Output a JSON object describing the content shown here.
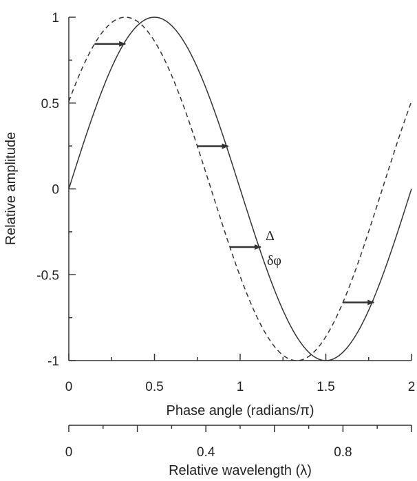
{
  "chart_data": {
    "type": "line",
    "xlabel": "Phase angle (radians/π)",
    "ylabel": "Relative amplitude",
    "xlim": [
      0,
      2
    ],
    "ylim": [
      -1,
      1
    ],
    "x_ticks": [
      "0",
      "0.5",
      "1",
      "1.5",
      "2"
    ],
    "y_ticks": [
      "1",
      "0.5",
      "0",
      "-0.5",
      "-1"
    ],
    "grid": false,
    "secondary_x_axis": {
      "label": "Relative wavelength (λ)",
      "range": [
        0,
        1
      ],
      "ticks": [
        "0",
        "0.4",
        "0.8"
      ]
    },
    "series": [
      {
        "style": "solid",
        "function": "sin(πx)",
        "x_range": [
          0,
          2
        ]
      },
      {
        "style": "dashed",
        "function": "sin(π(x + 0.17))",
        "x_range": [
          0,
          2
        ]
      }
    ],
    "shift_arrows_at_x": [
      0.15,
      0.75,
      0.94,
      1.6
    ],
    "shift_arrow_length": 0.18,
    "annotations": [
      "Δ",
      "δφ"
    ]
  }
}
